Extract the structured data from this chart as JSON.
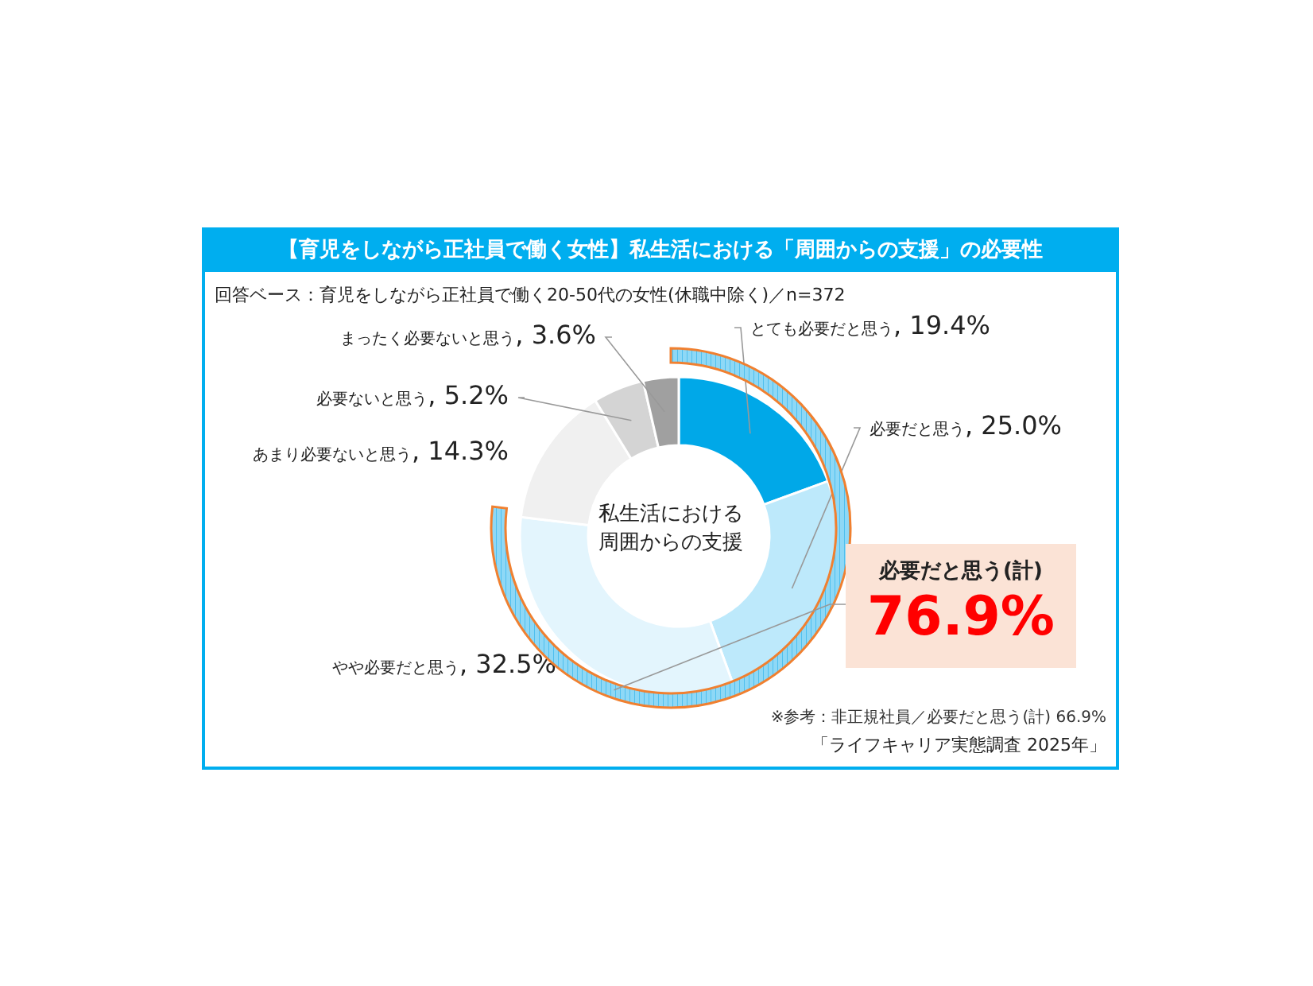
{
  "chart_data": {
    "type": "donut",
    "title": "【育児をしながら正社員で働く女性】私生活における「周囲からの支援」の必要性",
    "subtitle": "回答ベース：育児をしながら正社員で働く20-50代の女性(休職中除く)／n=372",
    "categories": [
      "とても必要だと思う",
      "必要だと思う",
      "やや必要だと思う",
      "あまり必要ないと思う",
      "必要ないと思う",
      "まったく必要ないと思う"
    ],
    "values": [
      19.4,
      25.0,
      32.5,
      14.3,
      5.2,
      3.6
    ],
    "value_labels": [
      ", 19.4%",
      ", 25.0%",
      ", 32.5%",
      ", 14.3%",
      ", 5.2%",
      ", 3.6%"
    ],
    "colors": [
      "#00a8e8",
      "#bde9fb",
      "#e3f5fd",
      "#f0f0f0",
      "#d4d4d4",
      "#a0a0a0"
    ],
    "annotations": [
      "私生活における",
      "周囲からの支援",
      "必要だと思う(計)",
      "76.9%",
      "※参考：非正規社員／必要だと思う(計) 66.9%",
      "「ライフキャリア実態調査 2025年」"
    ],
    "legend": false
  }
}
